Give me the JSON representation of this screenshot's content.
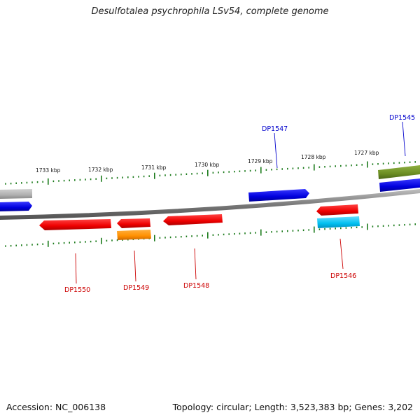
{
  "title": "Desulfotalea psychrophila LSv54, complete genome",
  "footer": {
    "accession": "Accession: NC_006138",
    "summary": "Topology: circular; Length: 3,523,383 bp; Genes: 3,202"
  },
  "kbp_labels": [
    "1733 kbp",
    "1732 kbp",
    "1731 kbp",
    "1730 kbp",
    "1729 kbp",
    "1728 kbp",
    "1727 kbp"
  ],
  "genes": [
    {
      "name": "DP1547",
      "color": "#0000cc",
      "strand": "forward"
    },
    {
      "name": "DP1545",
      "color": "#0000cc",
      "strand": "forward"
    },
    {
      "name": "DP1550",
      "color": "#cc0000",
      "strand": "reverse"
    },
    {
      "name": "DP1549",
      "color": "#cc0000",
      "strand": "reverse"
    },
    {
      "name": "DP1548",
      "color": "#cc0000",
      "strand": "reverse"
    },
    {
      "name": "DP1546",
      "color": "#cc0000",
      "strand": "reverse"
    }
  ],
  "colors": {
    "backbone": "#808080",
    "tick": "#1a7a1a",
    "forward_gene": "#0000ee",
    "reverse_gene": "#ee0000",
    "orange_feature": "#ff9900",
    "cyan_feature": "#00c0f0",
    "olive_feature": "#6b8e23",
    "gray_feature": "#b0b0b0"
  }
}
